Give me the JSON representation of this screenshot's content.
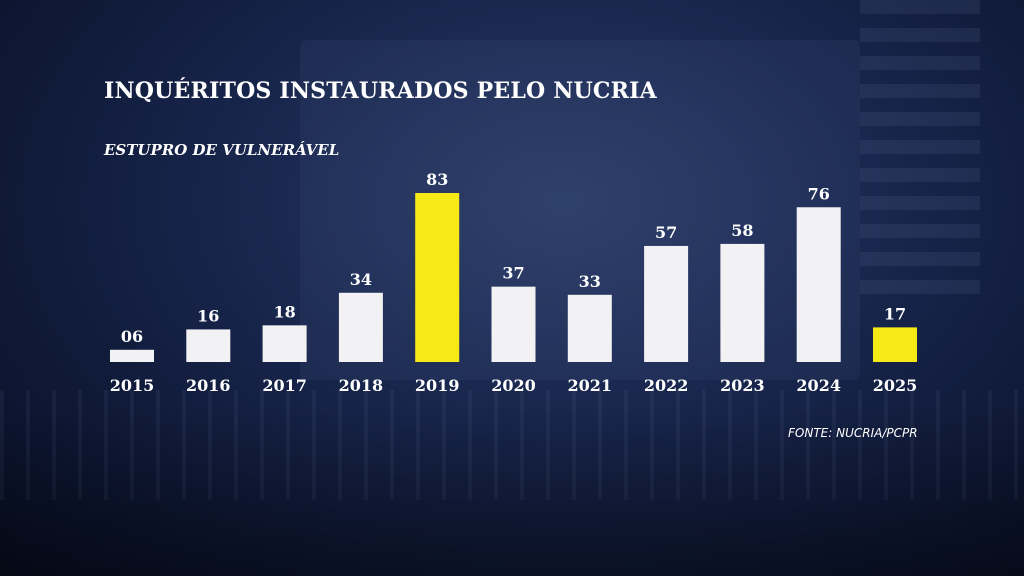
{
  "header": {
    "title": "INQUÉRITOS INSTAURADOS PELO NUCRIA",
    "subtitle": "ESTUPRO DE VULNERÁVEL"
  },
  "footer": {
    "source": "FONTE: NUCRIA/PCPR"
  },
  "colors": {
    "bar_default": "#f2f2f4",
    "bar_highlight": "#f7e916",
    "text": "#ffffff"
  },
  "chart_data": {
    "type": "bar",
    "categories": [
      "2015",
      "2016",
      "2017",
      "2018",
      "2019",
      "2020",
      "2021",
      "2022",
      "2023",
      "2024",
      "2025"
    ],
    "values": [
      6,
      16,
      18,
      34,
      83,
      37,
      33,
      57,
      58,
      76,
      17
    ],
    "value_labels": [
      "06",
      "16",
      "18",
      "34",
      "83",
      "37",
      "33",
      "57",
      "58",
      "76",
      "17"
    ],
    "highlighted": [
      "2019",
      "2025"
    ],
    "title": "INQUÉRITOS INSTAURADOS PELO NUCRIA",
    "subtitle": "ESTUPRO DE VULNERÁVEL",
    "xlabel": "",
    "ylabel": "",
    "ylim": [
      0,
      83
    ],
    "grid": false,
    "legend": "none"
  }
}
